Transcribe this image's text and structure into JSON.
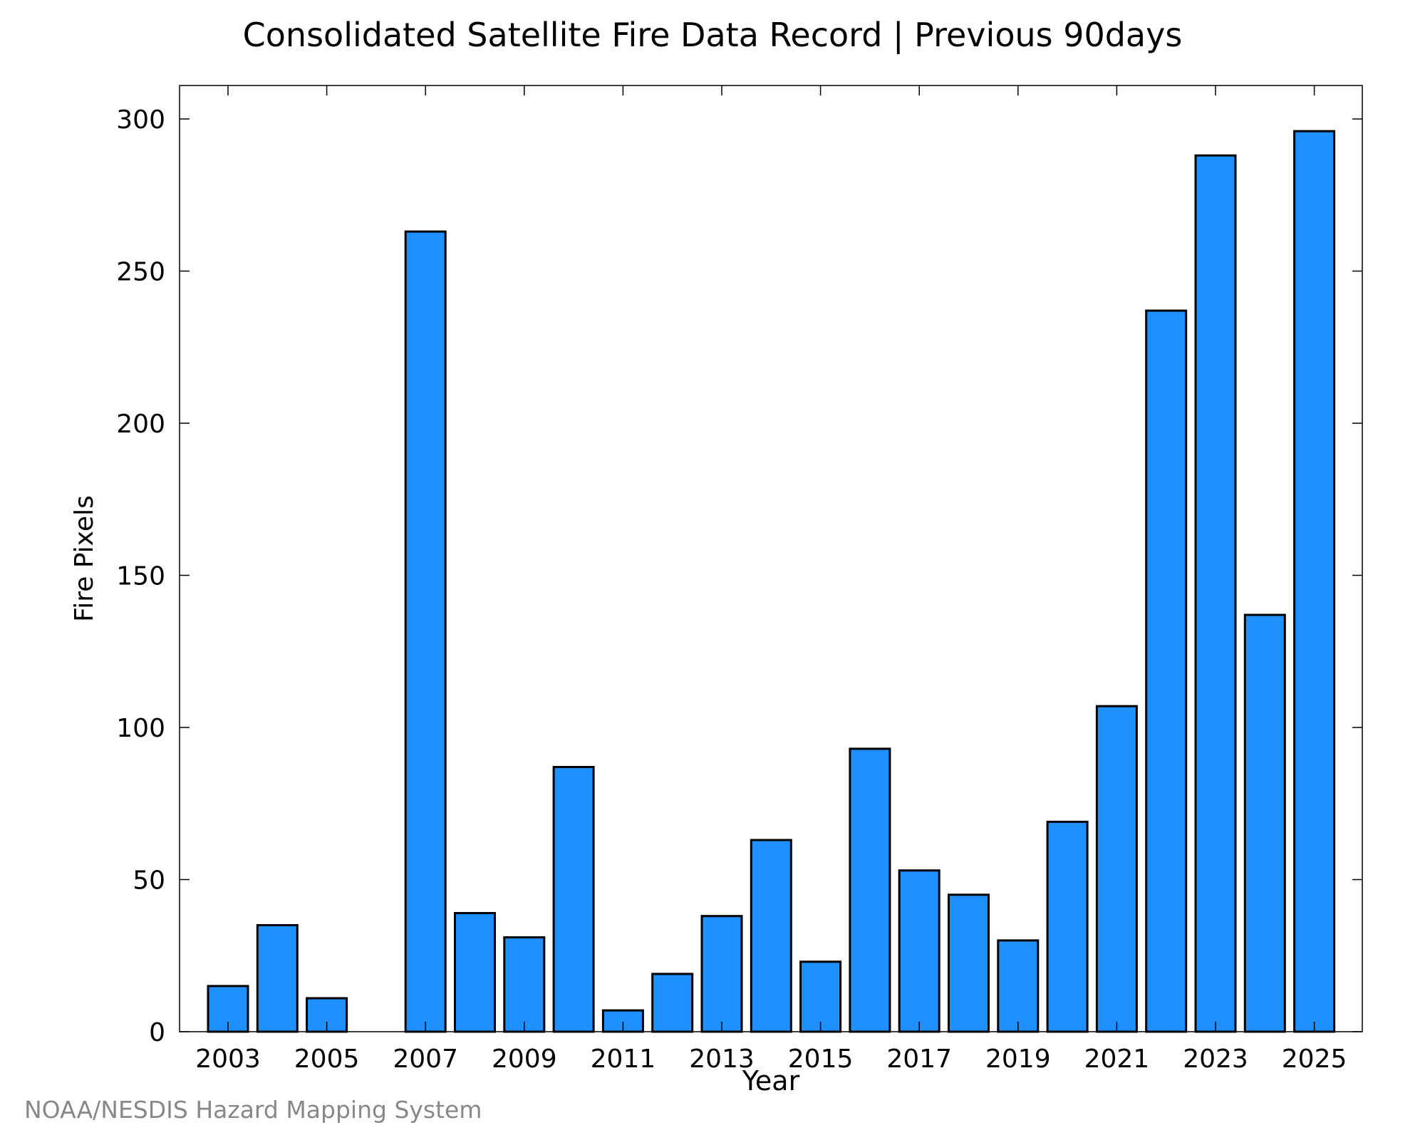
{
  "chart_data": {
    "type": "bar",
    "title": "Consolidated Satellite Fire Data Record | Previous 90days",
    "xlabel": "Year",
    "ylabel": "Fire Pixels",
    "categories": [
      "2003",
      "2004",
      "2005",
      "2006",
      "2007",
      "2008",
      "2009",
      "2010",
      "2011",
      "2012",
      "2013",
      "2014",
      "2015",
      "2016",
      "2017",
      "2018",
      "2019",
      "2020",
      "2021",
      "2022",
      "2023",
      "2024",
      "2025"
    ],
    "values": [
      15,
      35,
      11,
      0,
      263,
      39,
      31,
      87,
      7,
      19,
      38,
      63,
      23,
      93,
      53,
      45,
      30,
      69,
      107,
      237,
      288,
      137,
      296
    ],
    "x_tick_labels": [
      "2003",
      "2005",
      "2007",
      "2009",
      "2011",
      "2013",
      "2015",
      "2017",
      "2019",
      "2021",
      "2023",
      "2025"
    ],
    "y_ticks": [
      0,
      50,
      100,
      150,
      200,
      250,
      300
    ],
    "ylim": [
      0,
      311
    ],
    "grid": false,
    "legend": "none",
    "bar_color": "#1e90ff"
  },
  "credit": "NOAA/NESDIS Hazard Mapping System"
}
